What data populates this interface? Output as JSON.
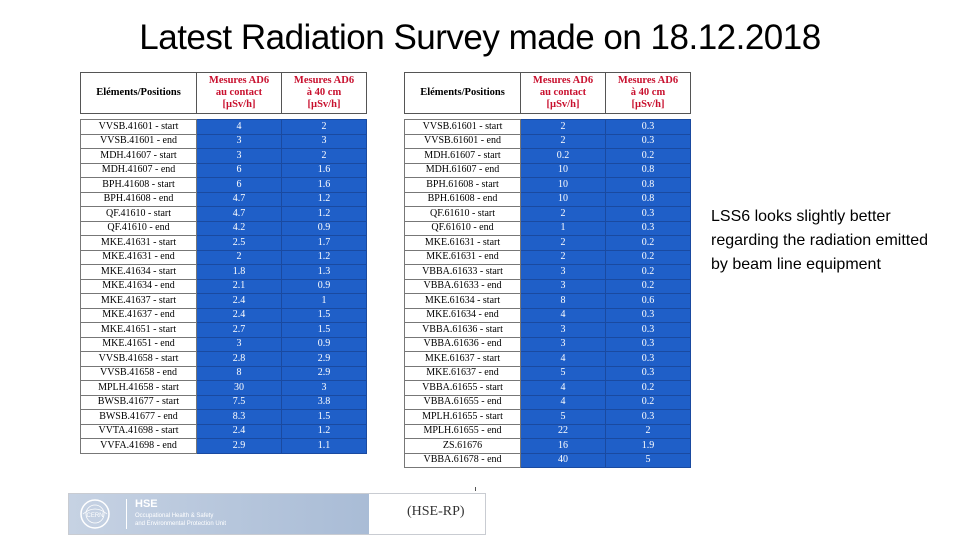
{
  "title": "Latest Radiation Survey made on 18.12.2018",
  "headers": {
    "position": "Eléments/Positions",
    "contact": [
      "Mesures AD6",
      "au contact",
      "[µSv/h]"
    ],
    "distance": [
      "Mesures AD6",
      "à 40 cm",
      "[µSv/h]"
    ]
  },
  "table_left": [
    {
      "pos": "VVSB.41601 - start",
      "contact": "4",
      "d40": "2"
    },
    {
      "pos": "VVSB.41601 - end",
      "contact": "3",
      "d40": "3"
    },
    {
      "pos": "MDH.41607 - start",
      "contact": "3",
      "d40": "2"
    },
    {
      "pos": "MDH.41607 - end",
      "contact": "6",
      "d40": "1.6"
    },
    {
      "pos": "BPH.41608 - start",
      "contact": "6",
      "d40": "1.6"
    },
    {
      "pos": "BPH.41608 - end",
      "contact": "4.7",
      "d40": "1.2"
    },
    {
      "pos": "QF.41610 - start",
      "contact": "4.7",
      "d40": "1.2"
    },
    {
      "pos": "QF.41610 - end",
      "contact": "4.2",
      "d40": "0.9"
    },
    {
      "pos": "MKE.41631 - start",
      "contact": "2.5",
      "d40": "1.7"
    },
    {
      "pos": "MKE.41631 - end",
      "contact": "2",
      "d40": "1.2"
    },
    {
      "pos": "MKE.41634 - start",
      "contact": "1.8",
      "d40": "1.3"
    },
    {
      "pos": "MKE.41634 - end",
      "contact": "2.1",
      "d40": "0.9"
    },
    {
      "pos": "MKE.41637 - start",
      "contact": "2.4",
      "d40": "1"
    },
    {
      "pos": "MKE.41637 - end",
      "contact": "2.4",
      "d40": "1.5"
    },
    {
      "pos": "MKE.41651 - start",
      "contact": "2.7",
      "d40": "1.5"
    },
    {
      "pos": "MKE.41651 - end",
      "contact": "3",
      "d40": "0.9"
    },
    {
      "pos": "VVSB.41658 - start",
      "contact": "2.8",
      "d40": "2.9"
    },
    {
      "pos": "VVSB.41658 - end",
      "contact": "8",
      "d40": "2.9"
    },
    {
      "pos": "MPLH.41658 - start",
      "contact": "30",
      "d40": "3"
    },
    {
      "pos": "BWSB.41677 - start",
      "contact": "7.5",
      "d40": "3.8"
    },
    {
      "pos": "BWSB.41677 - end",
      "contact": "8.3",
      "d40": "1.5"
    },
    {
      "pos": "VVTA.41698 - start",
      "contact": "2.4",
      "d40": "1.2"
    },
    {
      "pos": "VVFA.41698 - end",
      "contact": "2.9",
      "d40": "1.1"
    }
  ],
  "table_right": [
    {
      "pos": "VVSB.61601 - start",
      "contact": "2",
      "d40": "0.3"
    },
    {
      "pos": "VVSB.61601 - end",
      "contact": "2",
      "d40": "0.3"
    },
    {
      "pos": "MDH.61607 - start",
      "contact": "0.2",
      "d40": "0.2"
    },
    {
      "pos": "MDH.61607 - end",
      "contact": "10",
      "d40": "0.8"
    },
    {
      "pos": "BPH.61608 - start",
      "contact": "10",
      "d40": "0.8"
    },
    {
      "pos": "BPH.61608 - end",
      "contact": "10",
      "d40": "0.8"
    },
    {
      "pos": "QF.61610 - start",
      "contact": "2",
      "d40": "0.3"
    },
    {
      "pos": "QF.61610 - end",
      "contact": "1",
      "d40": "0.3"
    },
    {
      "pos": "MKE.61631 - start",
      "contact": "2",
      "d40": "0.2"
    },
    {
      "pos": "MKE.61631 - end",
      "contact": "2",
      "d40": "0.2"
    },
    {
      "pos": "VBBA.61633 - start",
      "contact": "3",
      "d40": "0.2"
    },
    {
      "pos": "VBBA.61633 - end",
      "contact": "3",
      "d40": "0.2"
    },
    {
      "pos": "MKE.61634 - start",
      "contact": "8",
      "d40": "0.6"
    },
    {
      "pos": "MKE.61634 - end",
      "contact": "4",
      "d40": "0.3"
    },
    {
      "pos": "VBBA.61636 - start",
      "contact": "3",
      "d40": "0.3"
    },
    {
      "pos": "VBBA.61636 - end",
      "contact": "3",
      "d40": "0.3"
    },
    {
      "pos": "MKE.61637 - start",
      "contact": "4",
      "d40": "0.3"
    },
    {
      "pos": "MKE.61637 - end",
      "contact": "5",
      "d40": "0.3"
    },
    {
      "pos": "VBBA.61655 - start",
      "contact": "4",
      "d40": "0.2"
    },
    {
      "pos": "VBBA.61655 - end",
      "contact": "4",
      "d40": "0.2"
    },
    {
      "pos": "MPLH.61655 - start",
      "contact": "5",
      "d40": "0.3"
    },
    {
      "pos": "MPLH.61655 - end",
      "contact": "22",
      "d40": "2"
    },
    {
      "pos": "ZS.61676",
      "contact": "16",
      "d40": "1.9"
    },
    {
      "pos": "VBBA.61678 - end",
      "contact": "40",
      "d40": "5"
    }
  ],
  "note": "LSS6 looks slightly better regarding the radiation emitted by beam line equipment",
  "footer": {
    "org": "HSE",
    "line1": "Occupational Health & Safety",
    "line2": "and Environmental Protection Unit",
    "unit": "(HSE-RP)",
    "logo_text": "CERN"
  }
}
